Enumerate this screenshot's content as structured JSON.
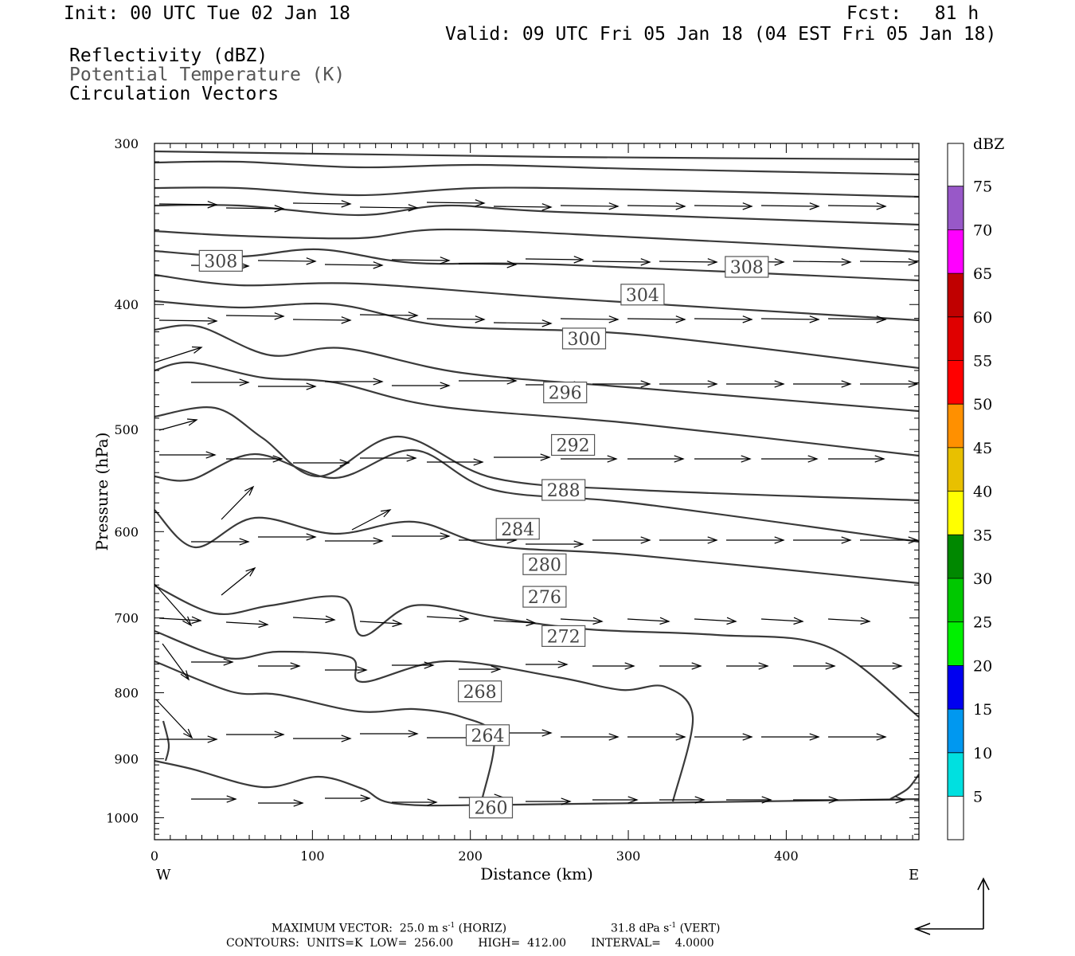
{
  "header": {
    "init": "Init: 00 UTC Tue 02 Jan 18",
    "fcst": "Fcst:   81 h",
    "valid": "Valid: 09 UTC Fri 05 Jan 18 (04 EST Fri 05 Jan 18)",
    "fields": [
      "Reflectivity (dBZ)",
      "Potential Temperature (K)",
      "Circulation Vectors"
    ]
  },
  "footer": {
    "max_vector_label": "MAXIMUM VECTOR:",
    "horiz_value": "25.0 m s",
    "horiz_suffix": " (HORIZ)",
    "vert_value": "31.8 dPa s",
    "vert_suffix": " (VERT)",
    "exponent": "-1",
    "contours": "CONTOURS:  UNITS=K  LOW=  256.00       HIGH=  412.00       INTERVAL=    4.0000"
  },
  "chart_data": {
    "type": "contour",
    "xlabel": "Distance (km)",
    "ylabel": "Pressure (hPa)",
    "x_ticks": [
      0,
      100,
      200,
      300,
      400
    ],
    "y_ticks": [
      300,
      400,
      500,
      600,
      700,
      800,
      900,
      1000
    ],
    "xlim": [
      0,
      484
    ],
    "ylim": [
      1040,
      300
    ],
    "y_scale": "log",
    "left_label": "W",
    "right_label": "E",
    "contour_labels": [
      {
        "value": "308",
        "x": 42,
        "p": 370
      },
      {
        "value": "308",
        "x": 375,
        "p": 374
      },
      {
        "value": "304",
        "x": 309,
        "p": 393
      },
      {
        "value": "300",
        "x": 272,
        "p": 425
      },
      {
        "value": "296",
        "x": 260,
        "p": 468
      },
      {
        "value": "292",
        "x": 265,
        "p": 514
      },
      {
        "value": "288",
        "x": 259,
        "p": 557
      },
      {
        "value": "284",
        "x": 230,
        "p": 597
      },
      {
        "value": "280",
        "x": 247,
        "p": 636
      },
      {
        "value": "276",
        "x": 247,
        "p": 674
      },
      {
        "value": "272",
        "x": 259,
        "p": 723
      },
      {
        "value": "268",
        "x": 206,
        "p": 798
      },
      {
        "value": "264",
        "x": 211,
        "p": 863
      },
      {
        "value": "260",
        "x": 213,
        "p": 982
      }
    ],
    "colorbar": {
      "title": "dBZ",
      "levels": [
        5,
        10,
        15,
        20,
        25,
        30,
        35,
        40,
        45,
        50,
        55,
        60,
        65,
        70,
        75
      ],
      "colors": [
        "#00e0e0",
        "#0098f0",
        "#0000f0",
        "#00f000",
        "#00c800",
        "#008800",
        "#ffff00",
        "#e8c000",
        "#ff9000",
        "#ff0000",
        "#e00000",
        "#c00000",
        "#ff00ff",
        "#9858c8"
      ]
    }
  }
}
